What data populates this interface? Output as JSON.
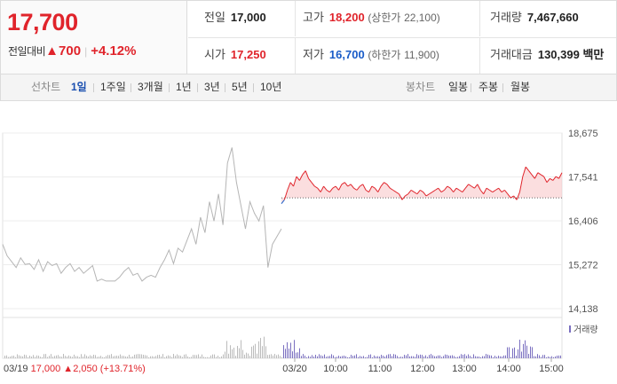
{
  "summary": {
    "price": "17,700",
    "change_label": "전일대비",
    "change_arrow": "▲",
    "change_value": "700",
    "change_rate": "+4.12%"
  },
  "stats": {
    "prev_close": {
      "label": "전일",
      "value": "17,000"
    },
    "high": {
      "label": "고가",
      "value": "18,200",
      "sub_label": "(상한가",
      "sub_value": "22,100)"
    },
    "volume": {
      "label": "거래량",
      "value": "7,467,660"
    },
    "open": {
      "label": "시가",
      "value": "17,250"
    },
    "low": {
      "label": "저가",
      "value": "16,700",
      "sub_label": "(하한가",
      "sub_value": "11,900)"
    },
    "amount": {
      "label": "거래대금",
      "value": "130,399 백만"
    }
  },
  "tabs": {
    "line_label": "선차트",
    "line_periods": [
      "1일",
      "1주일",
      "3개월",
      "1년",
      "3년",
      "5년",
      "10년"
    ],
    "active_period": "1일",
    "candle_label": "봉차트",
    "candle_periods": [
      "일봉",
      "주봉",
      "월봉"
    ]
  },
  "colors": {
    "up": "#e0242b",
    "down": "#1a5cc8",
    "prev_day_line": "#b5b5b5",
    "fill_up": "#f8c8ca"
  },
  "chart_data": {
    "type": "line",
    "ylim": [
      14138,
      18675
    ],
    "y_ticks": [
      "18,675",
      "17,541",
      "16,406",
      "15,272",
      "14,138"
    ],
    "y_tick_values": [
      18675,
      17541,
      16406,
      15272,
      14138
    ],
    "reference_price": 17000,
    "x_ticks": [
      "03/20",
      "10:00",
      "11:00",
      "12:00",
      "13:00",
      "14:00",
      "15:00"
    ],
    "volume_legend": "거래량",
    "prev_day": {
      "label": "03/19",
      "close": "17,000",
      "arrow": "▲",
      "change": "2,050",
      "rate": "(+13.71%)",
      "values": [
        15800,
        15500,
        15350,
        15200,
        15450,
        15280,
        15300,
        15150,
        15400,
        15100,
        15350,
        15250,
        15300,
        15050,
        15200,
        15300,
        15100,
        15200,
        15050,
        15150,
        15250,
        14850,
        14900,
        14850,
        14850,
        14850,
        14950,
        15100,
        15200,
        15000,
        15050,
        14850,
        14950,
        15000,
        14950,
        15200,
        15400,
        15650,
        15300,
        15700,
        15600,
        15900,
        16200,
        15800,
        16500,
        16100,
        16900,
        16400,
        17100,
        16300,
        17900,
        18300,
        17400,
        16800,
        16200,
        16900,
        16600,
        16400,
        16800,
        15200,
        15800,
        16000,
        16200
      ]
    },
    "today": {
      "values": [
        16850,
        16950,
        17200,
        17400,
        17300,
        17550,
        17450,
        17600,
        17700,
        17500,
        17400,
        17300,
        17250,
        17150,
        17300,
        17200,
        17150,
        17250,
        17300,
        17200,
        17350,
        17400,
        17300,
        17350,
        17250,
        17200,
        17300,
        17350,
        17200,
        17150,
        17300,
        17250,
        17150,
        17300,
        17400,
        17350,
        17250,
        17200,
        17150,
        17100,
        16950,
        17050,
        17100,
        17200,
        17150,
        17100,
        17200,
        17150,
        17050,
        17100,
        17150,
        17200,
        17250,
        17150,
        17200,
        17300,
        17250,
        17150,
        17250,
        17200,
        17150,
        17250,
        17350,
        17300,
        17250,
        17350,
        17200,
        17100,
        17250,
        17200,
        17150,
        17200,
        17250,
        17150,
        17200,
        17100,
        17000,
        17050,
        16950,
        17150,
        17550,
        17800,
        17700,
        17600,
        17500,
        17650,
        17600,
        17550,
        17400,
        17500,
        17450,
        17550,
        17500,
        17650
      ]
    }
  }
}
